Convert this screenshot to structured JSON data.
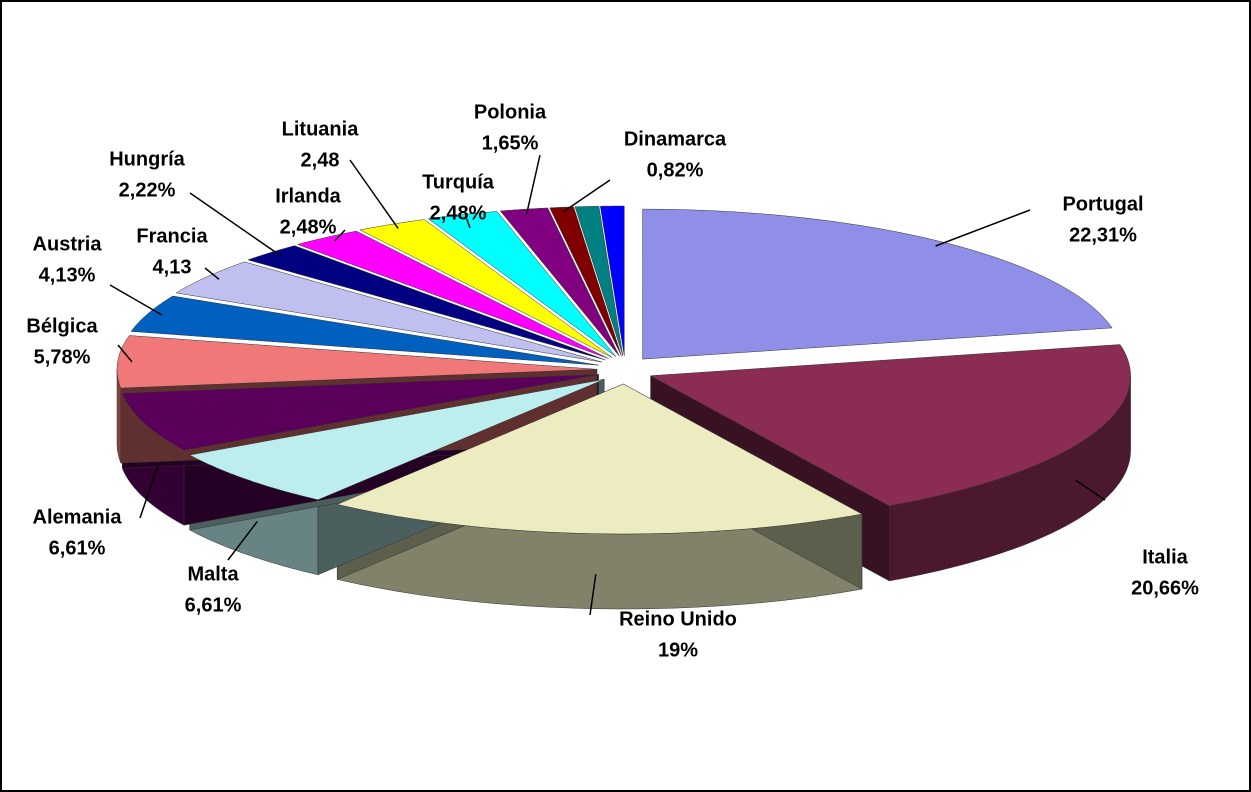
{
  "chart_data": {
    "type": "pie",
    "categories": [
      "Portugal",
      "Italia",
      "Reino Unido",
      "Malta",
      "Alemania",
      "Bélgica",
      "Austria",
      "Francia",
      "Hungría",
      "Irlanda",
      "Lituania",
      "Turquía",
      "Polonia",
      "Dinamarca",
      null,
      null
    ],
    "values": [
      22.31,
      20.66,
      19,
      6.61,
      6.61,
      5.78,
      4.13,
      4.13,
      2.22,
      2.48,
      2.48,
      2.48,
      1.65,
      0.82,
      0.82,
      0.82
    ],
    "value_labels": [
      "22,31%",
      "20,66%",
      "19%",
      "6,61%",
      "6,61%",
      "5,78%",
      "4,13%",
      "4,13",
      "2,22%",
      "2,48%",
      "2,48",
      "2,48%",
      "1,65%",
      "0,82%",
      null,
      null
    ],
    "colors": [
      "#8f8fe8",
      "#8b2c55",
      "#ececc0",
      "#bdeeee",
      "#5a005a",
      "#f07878",
      "#0060c0",
      "#c0c0f0",
      "#000080",
      "#ff00ff",
      "#ffff00",
      "#00ffff",
      "#800080",
      "#800000",
      "#008080",
      "#0000ff"
    ]
  }
}
